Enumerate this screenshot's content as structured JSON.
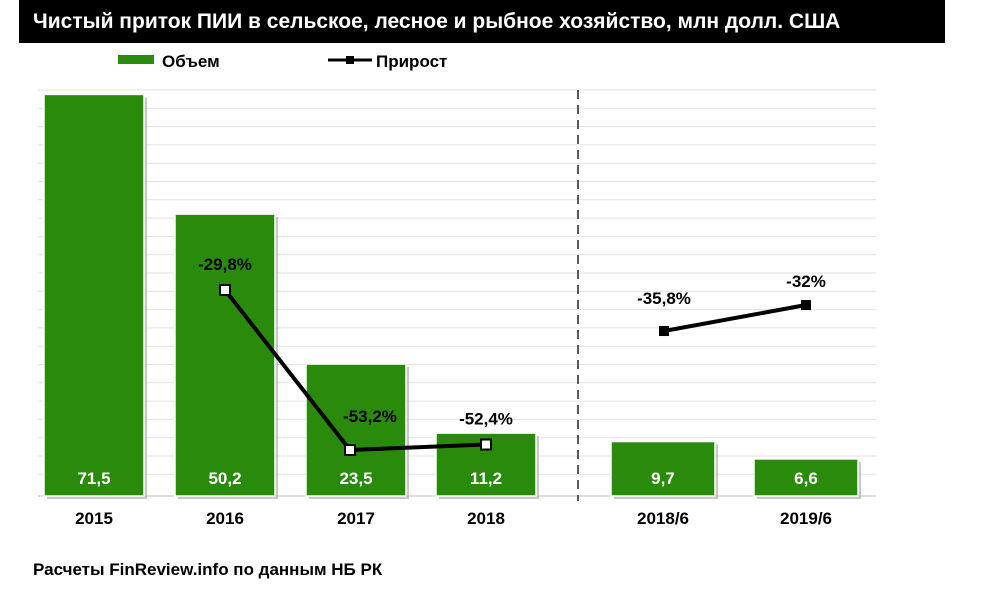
{
  "title": "Чистый приток ПИИ в сельское, лесное и рыбное хозяйство, млн долл. США",
  "source": "Расчеты FinReview.info по данным НБ РК",
  "chart_data": {
    "type": "bar",
    "categories": [
      "2015",
      "2016",
      "2017",
      "2018",
      "2018/6",
      "2019/6"
    ],
    "series": [
      {
        "name": "Объем",
        "type": "bar",
        "color": "#2a8a0c",
        "values": [
          71.5,
          50.2,
          23.5,
          11.2,
          9.7,
          6.6
        ],
        "labels": [
          "71,5",
          "50,2",
          "23,5",
          "11,2",
          "9,7",
          "6,6"
        ]
      },
      {
        "name": "Прирост",
        "type": "line",
        "color": "#000000",
        "unit": "%",
        "values": [
          null,
          -29.8,
          -53.2,
          -52.4,
          -35.8,
          -32.0
        ],
        "labels": [
          "",
          "-29,8%",
          "-53,2%",
          "-52,4%",
          "-35,8%",
          "-32%"
        ]
      }
    ],
    "legend_position": "top",
    "grid": true,
    "separator_between": [
      "2018",
      "2018/6"
    ]
  }
}
